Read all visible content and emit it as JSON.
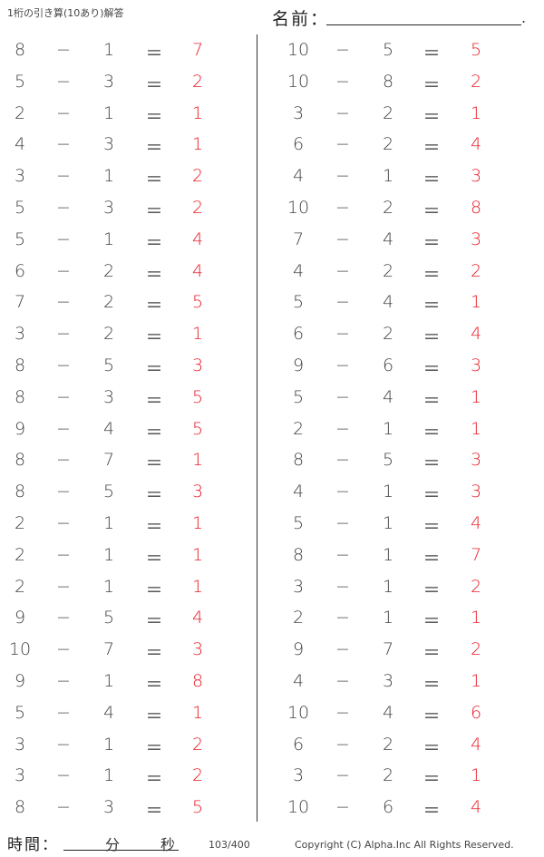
{
  "header": {
    "title": "1桁の引き算(10あり)解答",
    "name_label": "名前：",
    "name_end": "."
  },
  "footer": {
    "time_label": "時間：",
    "minutes_label": "分",
    "seconds_label": "秒",
    "page": "103/400",
    "copyright": "Copyright (C) Alpha.Inc All Rights Reserved."
  },
  "symbols": {
    "minus": "−",
    "equals": "＝"
  },
  "colors": {
    "answer": "#e8202a",
    "text": "#444444"
  },
  "left_problems": [
    [
      "8",
      "1",
      "7"
    ],
    [
      "5",
      "3",
      "2"
    ],
    [
      "2",
      "1",
      "1"
    ],
    [
      "4",
      "3",
      "1"
    ],
    [
      "3",
      "1",
      "2"
    ],
    [
      "5",
      "3",
      "2"
    ],
    [
      "5",
      "1",
      "4"
    ],
    [
      "6",
      "2",
      "4"
    ],
    [
      "7",
      "2",
      "5"
    ],
    [
      "3",
      "2",
      "1"
    ],
    [
      "8",
      "5",
      "3"
    ],
    [
      "8",
      "3",
      "5"
    ],
    [
      "9",
      "4",
      "5"
    ],
    [
      "8",
      "7",
      "1"
    ],
    [
      "8",
      "5",
      "3"
    ],
    [
      "2",
      "1",
      "1"
    ],
    [
      "2",
      "1",
      "1"
    ],
    [
      "2",
      "1",
      "1"
    ],
    [
      "9",
      "5",
      "4"
    ],
    [
      "10",
      "7",
      "3"
    ],
    [
      "9",
      "1",
      "8"
    ],
    [
      "5",
      "4",
      "1"
    ],
    [
      "3",
      "1",
      "2"
    ],
    [
      "3",
      "1",
      "2"
    ],
    [
      "8",
      "3",
      "5"
    ]
  ],
  "right_problems": [
    [
      "10",
      "5",
      "5"
    ],
    [
      "10",
      "8",
      "2"
    ],
    [
      "3",
      "2",
      "1"
    ],
    [
      "6",
      "2",
      "4"
    ],
    [
      "4",
      "1",
      "3"
    ],
    [
      "10",
      "2",
      "8"
    ],
    [
      "7",
      "4",
      "3"
    ],
    [
      "4",
      "2",
      "2"
    ],
    [
      "5",
      "4",
      "1"
    ],
    [
      "6",
      "2",
      "4"
    ],
    [
      "9",
      "6",
      "3"
    ],
    [
      "5",
      "4",
      "1"
    ],
    [
      "2",
      "1",
      "1"
    ],
    [
      "8",
      "5",
      "3"
    ],
    [
      "4",
      "1",
      "3"
    ],
    [
      "5",
      "1",
      "4"
    ],
    [
      "8",
      "1",
      "7"
    ],
    [
      "3",
      "1",
      "2"
    ],
    [
      "2",
      "1",
      "1"
    ],
    [
      "9",
      "7",
      "2"
    ],
    [
      "4",
      "3",
      "1"
    ],
    [
      "10",
      "4",
      "6"
    ],
    [
      "6",
      "2",
      "4"
    ],
    [
      "3",
      "2",
      "1"
    ],
    [
      "10",
      "6",
      "4"
    ]
  ]
}
